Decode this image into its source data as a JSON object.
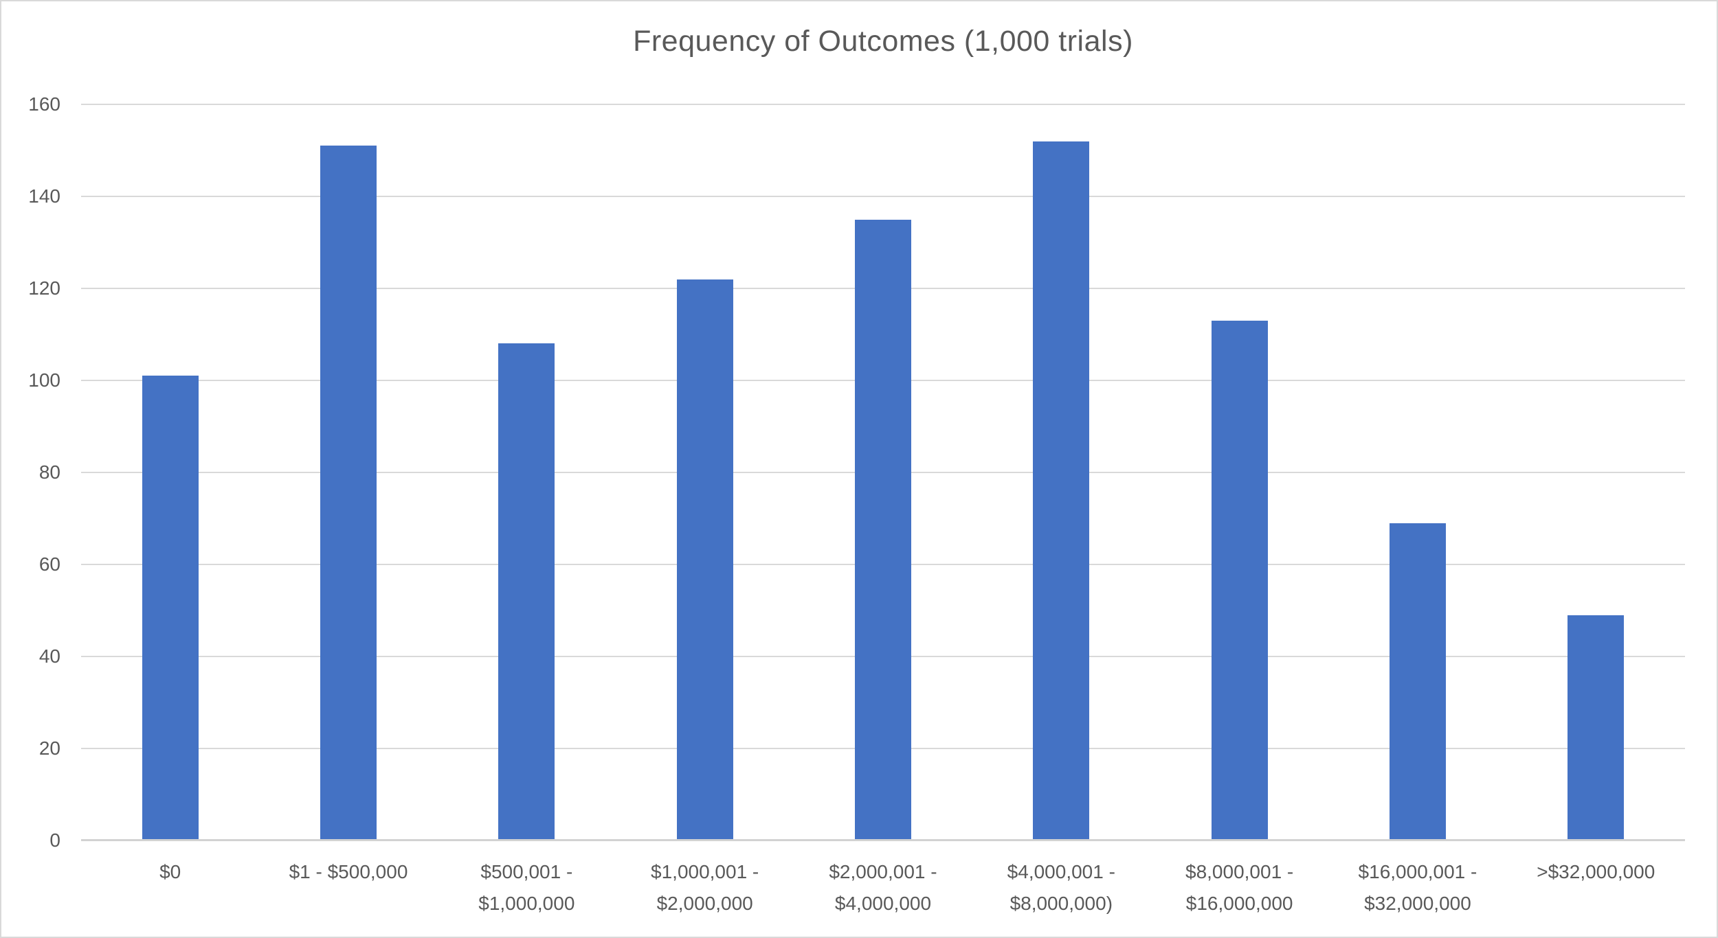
{
  "chart": {
    "title": "Frequency of Outcomes (1,000 trials)"
  },
  "chart_data": {
    "type": "bar",
    "title": "Frequency of Outcomes (1,000 trials)",
    "categories": [
      "$0",
      "$1 - $500,000",
      "$500,001 - $1,000,000",
      "$1,000,001 - $2,000,000",
      "$2,000,001 - $4,000,000",
      "$4,000,001 - $8,000,000)",
      "$8,000,001 - $16,000,000",
      "$16,000,001 - $32,000,000",
      ">$32,000,000"
    ],
    "category_lines": [
      [
        "$0"
      ],
      [
        "$1 - $500,000"
      ],
      [
        "$500,001 -",
        "$1,000,000"
      ],
      [
        "$1,000,001 -",
        "$2,000,000"
      ],
      [
        "$2,000,001 -",
        "$4,000,000"
      ],
      [
        "$4,000,001 -",
        "$8,000,000)"
      ],
      [
        "$8,000,001 -",
        "$16,000,000"
      ],
      [
        "$16,000,001 -",
        "$32,000,000"
      ],
      [
        ">$32,000,000"
      ]
    ],
    "values": [
      101,
      151,
      108,
      122,
      135,
      152,
      113,
      69,
      49
    ],
    "xlabel": "",
    "ylabel": "",
    "ylim": [
      0,
      160
    ],
    "ytick_step": 20,
    "yticks": [
      0,
      20,
      40,
      60,
      80,
      100,
      120,
      140,
      160
    ],
    "grid": true,
    "legend_position": "none",
    "bar_color": "#4472C4",
    "gridline_color": "#D9D9D9",
    "axis_line_color": "#D2D2D2",
    "text_color": "#595959",
    "background_color": "#FFFFFF"
  }
}
